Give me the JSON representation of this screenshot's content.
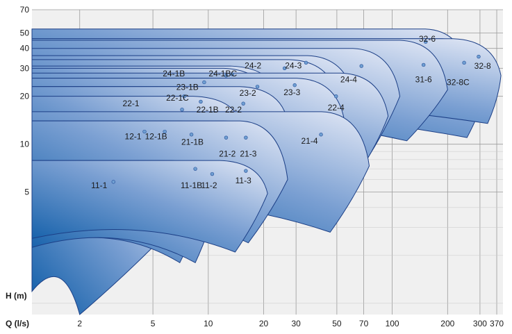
{
  "chart_data": {
    "type": "area",
    "title": "",
    "xlabel": "Q (l/s)",
    "ylabel": "H (m)",
    "x_scale": "log",
    "y_scale": "log",
    "xlim": [
      1.1,
      400
    ],
    "ylim": [
      0.85,
      70
    ],
    "grid": true,
    "x_ticks": [
      2,
      5,
      10,
      20,
      30,
      50,
      70,
      100,
      200,
      300,
      370
    ],
    "x_tick_labels": [
      "2",
      "5",
      "10",
      "20",
      "30",
      "50",
      "70",
      "100",
      "200",
      "300",
      "370"
    ],
    "y_ticks": [
      5,
      10,
      20,
      30,
      40,
      50,
      70
    ],
    "y_tick_labels": [
      "5",
      "10",
      "20",
      "30",
      "40",
      "50",
      "70"
    ],
    "colors": {
      "area_dark": "#0a5aa6",
      "area_light": "#e4e9f6",
      "outline": "#1c3f86",
      "point": "#6f9fd2",
      "grid": "#9a9a9a",
      "plot_bg": "#f0f0f0"
    },
    "series": [
      {
        "name": "11-1",
        "label_q": 2.55,
        "label_h": 5.5,
        "q_end": 6.0,
        "h_top": 7.9,
        "h_end": 2.8,
        "q_bottom": 2.0,
        "h_bottom": 0.85,
        "point_q": 3.05,
        "point_h": 5.8
      },
      {
        "name": "11-1B",
        "label_q": 8.1,
        "label_h": 5.5,
        "q_end": 10.0,
        "h_top": 7.9,
        "h_end": 5.2,
        "q_bottom": 7.0,
        "h_bottom": 1.8,
        "point_q": 8.5,
        "point_h": 7.0
      },
      {
        "name": "11-2",
        "label_q": 10.1,
        "label_h": 5.5,
        "q_end": 11.5,
        "h_top": 7.9,
        "h_end": 5.0,
        "q_bottom": 8.5,
        "h_bottom": 1.8,
        "point_q": 10.5,
        "point_h": 6.5
      },
      {
        "name": "11-3",
        "label_q": 15.5,
        "label_h": 5.9,
        "q_end": 21.0,
        "h_top": 7.9,
        "h_end": 4.9,
        "q_bottom": 14.0,
        "h_bottom": 2.1,
        "point_q": 16.0,
        "point_h": 6.8
      },
      {
        "name": "12-1",
        "label_q": 3.9,
        "label_h": 11.2,
        "q_end": 10.0,
        "h_top": 14.0,
        "h_end": 6.0,
        "q_bottom": 6.0,
        "h_bottom": 2.2,
        "point_q": 4.5,
        "point_h": 12.0
      },
      {
        "name": "12-1B",
        "label_q": 5.2,
        "label_h": 11.2,
        "q_end": 11.5,
        "h_top": 14.0,
        "h_end": 6.8,
        "q_bottom": 7.5,
        "h_bottom": 2.4,
        "point_q": 5.8,
        "point_h": 12.0
      },
      {
        "name": "21-1B",
        "label_q": 8.2,
        "label_h": 10.3,
        "q_end": 13.0,
        "h_top": 14.0,
        "h_end": 8.0,
        "q_bottom": 9.5,
        "h_bottom": 2.6,
        "point_q": 8.1,
        "point_h": 11.5
      },
      {
        "name": "21-2",
        "label_q": 12.7,
        "label_h": 8.7,
        "q_end": 22.0,
        "h_top": 14.0,
        "h_end": 7.5,
        "q_bottom": 14.5,
        "h_bottom": 2.9,
        "point_q": 12.5,
        "point_h": 11.0
      },
      {
        "name": "21-3",
        "label_q": 16.5,
        "label_h": 8.7,
        "q_end": 27.0,
        "h_top": 14.0,
        "h_end": 6.0,
        "q_bottom": 16.5,
        "h_bottom": 2.4,
        "point_q": 16.0,
        "point_h": 11.0
      },
      {
        "name": "21-4",
        "label_q": 35.5,
        "label_h": 10.5,
        "q_end": 75.0,
        "h_top": 16.0,
        "h_end": 7.3,
        "q_bottom": 46.0,
        "h_bottom": 2.8,
        "point_q": 41.0,
        "point_h": 11.5
      },
      {
        "name": "22-1",
        "label_q": 3.8,
        "label_h": 18.0,
        "q_end": 15.0,
        "h_top": 20.0,
        "h_end": 13.5,
        "q_bottom": 10.0,
        "h_bottom": 4.6,
        "point_q": 7.2,
        "point_h": 16.5
      },
      {
        "name": "22-1C",
        "label_q": 6.8,
        "label_h": 19.5,
        "q_end": 14.0,
        "h_top": 23.0,
        "h_end": 16.5,
        "q_bottom": 10.0,
        "h_bottom": 6.0,
        "point_q": 7.4,
        "point_h": 20.0
      },
      {
        "name": "22-1B",
        "label_q": 9.9,
        "label_h": 16.5,
        "q_end": 17.0,
        "h_top": 23.0,
        "h_end": 15.0,
        "q_bottom": 11.5,
        "h_bottom": 5.2,
        "point_q": 9.1,
        "point_h": 18.5
      },
      {
        "name": "22-2",
        "label_q": 13.7,
        "label_h": 16.5,
        "q_end": 27.0,
        "h_top": 23.0,
        "h_end": 14.0,
        "q_bottom": 17.5,
        "h_bottom": 4.8,
        "point_q": 15.5,
        "point_h": 18.0
      },
      {
        "name": "23-1B",
        "label_q": 7.7,
        "label_h": 22.8,
        "q_end": 18.0,
        "h_top": 26.0,
        "h_end": 17.0,
        "q_bottom": 13.0,
        "h_bottom": 5.8,
        "point_q": 9.5,
        "point_h": 24.5
      },
      {
        "name": "23-2",
        "label_q": 16.4,
        "label_h": 21.0,
        "q_end": 30.0,
        "h_top": 26.0,
        "h_end": 16.5,
        "q_bottom": 19.0,
        "h_bottom": 5.4,
        "point_q": 18.5,
        "point_h": 23.0
      },
      {
        "name": "23-3",
        "label_q": 28.5,
        "label_h": 21.2,
        "q_end": 55.0,
        "h_top": 26.0,
        "h_end": 14.0,
        "q_bottom": 33.0,
        "h_bottom": 4.7,
        "point_q": 29.5,
        "point_h": 23.5
      },
      {
        "name": "24-1B",
        "label_q": 6.5,
        "label_h": 27.8,
        "q_end": 22.0,
        "h_top": 30.0,
        "h_end": 18.0,
        "q_bottom": 16.0,
        "h_bottom": 6.5,
        "point_q": 12.5,
        "point_h": 27.0
      },
      {
        "name": "24-1BC",
        "label_q": 12.0,
        "label_h": 27.8,
        "q_end": 24.0,
        "h_top": 31.0,
        "h_end": 20.0,
        "q_bottom": 17.0,
        "h_bottom": 6.8,
        "point_q": 13.5,
        "point_h": 27.5
      },
      {
        "name": "24-2",
        "label_q": 17.5,
        "label_h": 31.2,
        "q_end": 50.0,
        "h_top": 34.0,
        "h_end": 20.0,
        "q_bottom": 30.0,
        "h_bottom": 6.5,
        "point_q": 26.0,
        "point_h": 30.0
      },
      {
        "name": "24-3",
        "label_q": 29.0,
        "label_h": 31.2,
        "q_end": 63.0,
        "h_top": 36.0,
        "h_end": 18.0,
        "q_bottom": 36.0,
        "h_bottom": 7.0,
        "point_q": 34.0,
        "point_h": 32.5
      },
      {
        "name": "22-4",
        "label_q": 49.5,
        "label_h": 17.0,
        "q_end": 95.0,
        "h_top": 28.0,
        "h_end": 15.0,
        "q_bottom": 65.0,
        "h_bottom": 6.5,
        "point_q": 49.5,
        "point_h": 20.0
      },
      {
        "name": "24-4",
        "label_q": 58.0,
        "label_h": 25.5,
        "q_end": 110.0,
        "h_top": 40.0,
        "h_end": 20.0,
        "q_bottom": 70.0,
        "h_bottom": 7.5,
        "point_q": 68.0,
        "point_h": 31.0
      },
      {
        "name": "31-6",
        "label_q": 148.0,
        "label_h": 25.5,
        "q_end": 200.0,
        "h_top": 45.0,
        "h_end": 22.0,
        "q_bottom": 120.0,
        "h_bottom": 10.5,
        "point_q": 148.0,
        "point_h": 31.5
      },
      {
        "name": "32-6",
        "label_q": 155.0,
        "label_h": 46.0,
        "q_end": 275.0,
        "h_top": 53.0,
        "h_end": 23.0,
        "q_bottom": 200.0,
        "h_bottom": 12.0,
        "point_q": 152.0,
        "point_h": 44.0
      },
      {
        "name": "32-8C",
        "label_q": 228.0,
        "label_h": 24.5,
        "q_end": 340.0,
        "h_top": 46.0,
        "h_end": 26.0,
        "q_bottom": 255.0,
        "h_bottom": 11.0,
        "point_q": 246.0,
        "point_h": 32.5
      },
      {
        "name": "32-8",
        "label_q": 310.0,
        "label_h": 31.0,
        "q_end": 390.0,
        "h_top": 46.0,
        "h_end": 27.0,
        "q_bottom": 330.0,
        "h_bottom": 13.5,
        "point_q": 295.0,
        "point_h": 35.5
      }
    ]
  }
}
